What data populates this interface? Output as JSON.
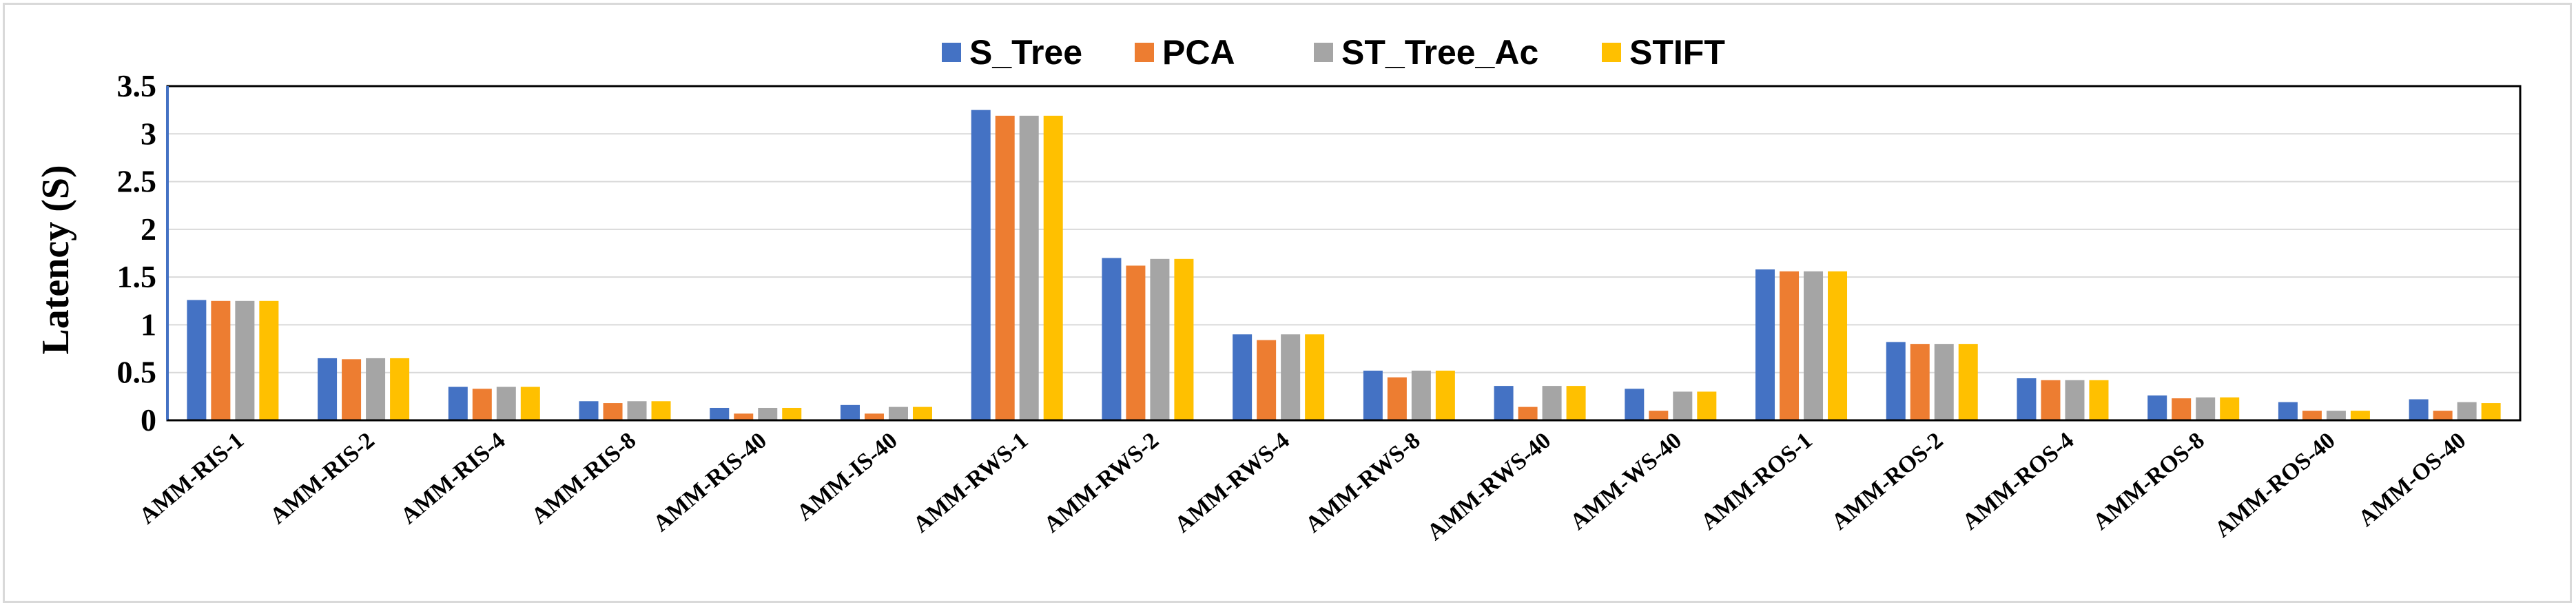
{
  "chart_data": {
    "type": "bar",
    "ylabel": "Latency (S)",
    "xlabel": "",
    "ylim": [
      0,
      3.5
    ],
    "yticks": [
      "0",
      "0.5",
      "1",
      "1.5",
      "2",
      "2.5",
      "3",
      "3.5"
    ],
    "grid": true,
    "legend_position": "top-center",
    "categories": [
      "AMM-RIS-1",
      "AMM-RIS-2",
      "AMM-RIS-4",
      "AMM-RIS-8",
      "AMM-RIS-40",
      "AMM-IS-40",
      "AMM-RWS-1",
      "AMM-RWS-2",
      "AMM-RWS-4",
      "AMM-RWS-8",
      "AMM-RWS-40",
      "AMM-WS-40",
      "AMM-ROS-1",
      "AMM-ROS-2",
      "AMM-ROS-4",
      "AMM-ROS-8",
      "AMM-ROS-40",
      "AMM-OS-40"
    ],
    "series": [
      {
        "name": "S_Tree",
        "color": "#4472C4",
        "values": [
          1.26,
          0.65,
          0.35,
          0.2,
          0.13,
          0.16,
          3.25,
          1.7,
          0.9,
          0.52,
          0.36,
          0.33,
          1.58,
          0.82,
          0.44,
          0.26,
          0.19,
          0.22
        ]
      },
      {
        "name": "PCA",
        "color": "#ED7D31",
        "values": [
          1.25,
          0.64,
          0.33,
          0.18,
          0.07,
          0.07,
          3.19,
          1.62,
          0.84,
          0.45,
          0.14,
          0.1,
          1.56,
          0.8,
          0.42,
          0.23,
          0.1,
          0.1
        ]
      },
      {
        "name": "ST_Tree_Ac",
        "color": "#A5A5A5",
        "values": [
          1.25,
          0.65,
          0.35,
          0.2,
          0.13,
          0.14,
          3.19,
          1.69,
          0.9,
          0.52,
          0.36,
          0.3,
          1.56,
          0.8,
          0.42,
          0.24,
          0.1,
          0.19
        ]
      },
      {
        "name": "STIFT",
        "color": "#FFC000",
        "values": [
          1.25,
          0.65,
          0.35,
          0.2,
          0.13,
          0.14,
          3.19,
          1.69,
          0.9,
          0.52,
          0.36,
          0.3,
          1.56,
          0.8,
          0.42,
          0.24,
          0.1,
          0.18
        ]
      }
    ]
  }
}
